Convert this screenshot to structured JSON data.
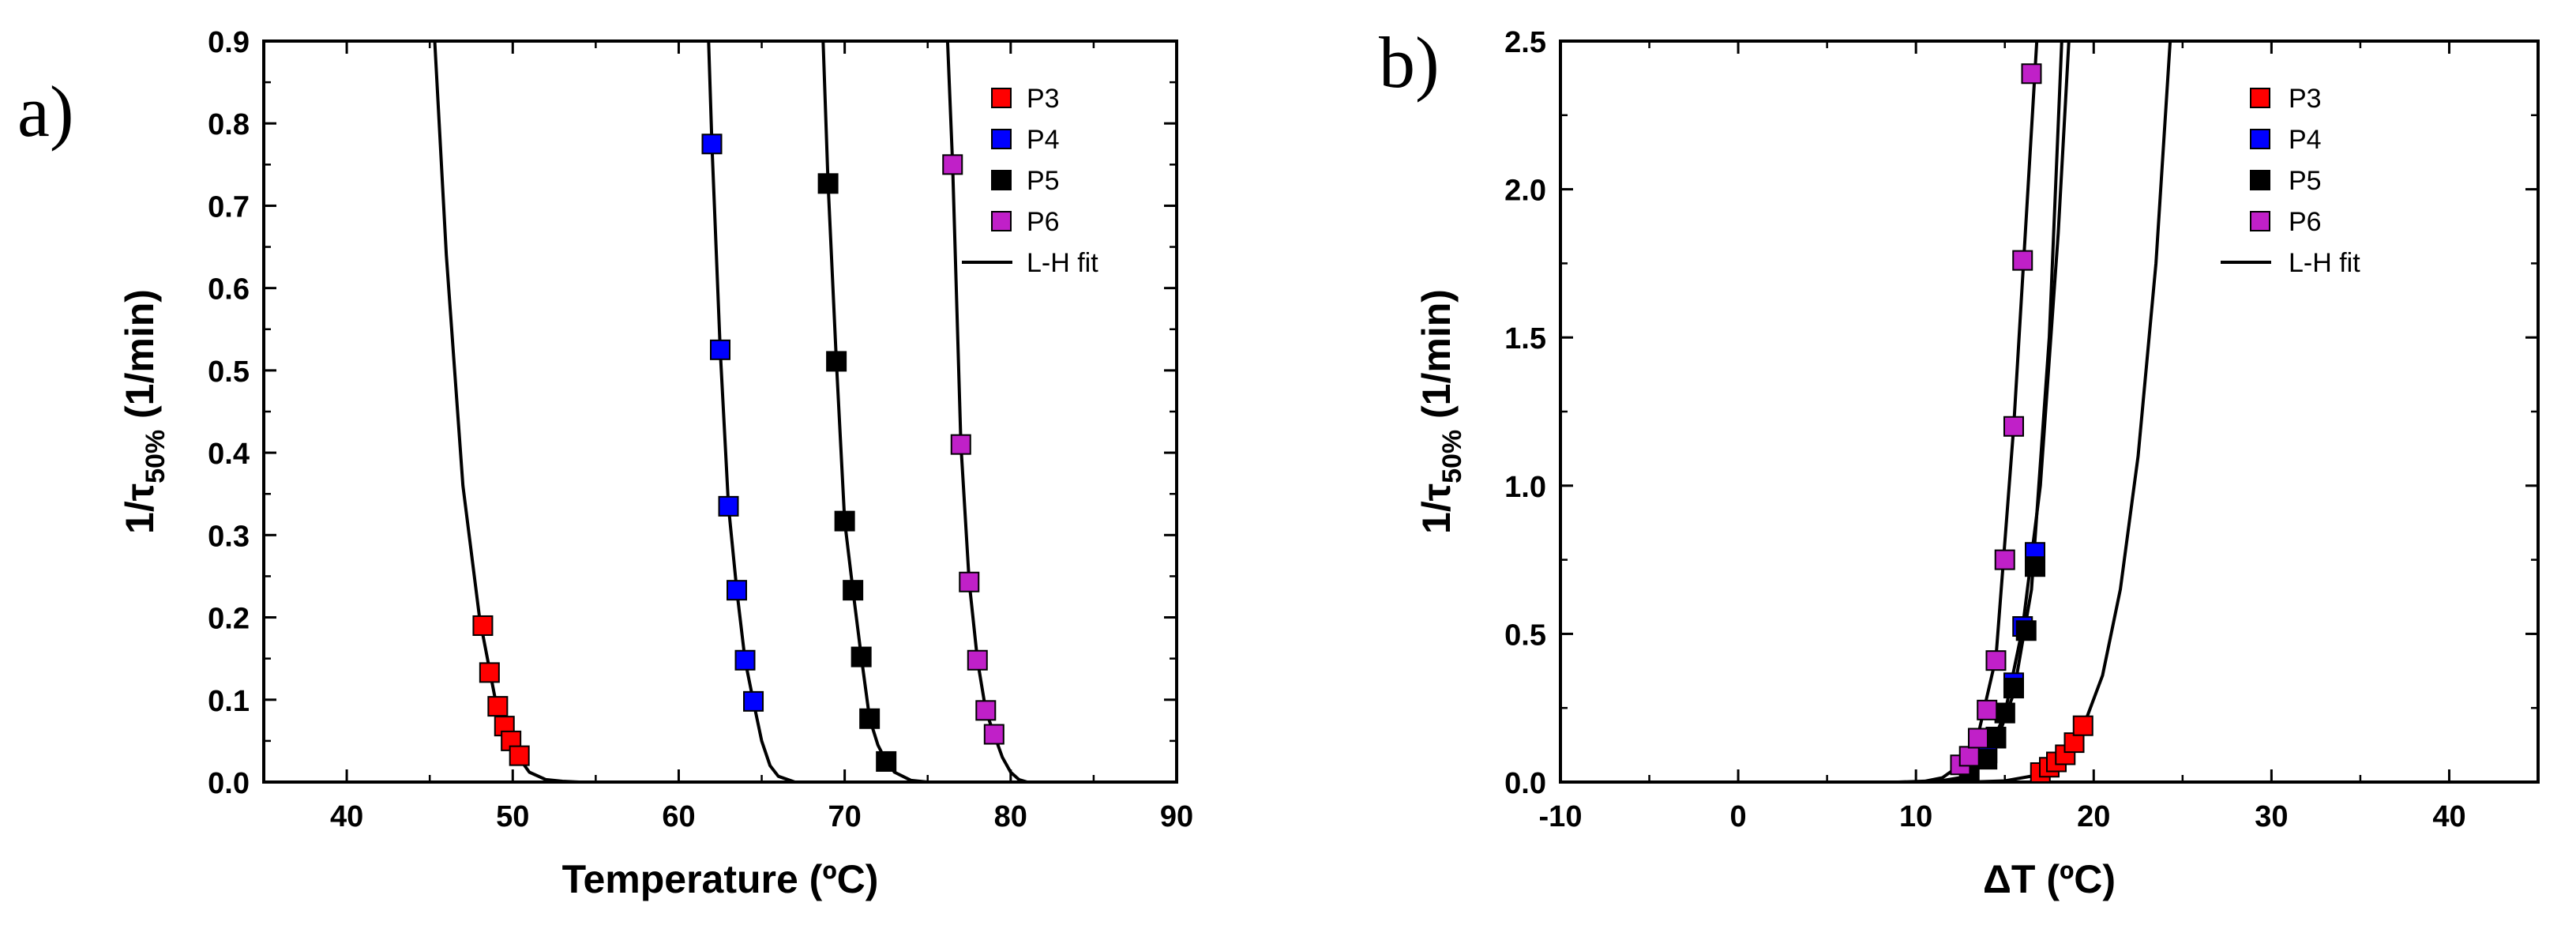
{
  "chart_data": [
    {
      "panel_label": "a)",
      "type": "scatter",
      "xlabel": "Temperature (ºC)",
      "ylabel": {
        "prefix": "1/τ",
        "subscript": "50%",
        "suffix": " (1/min)"
      },
      "xlim": [
        35,
        90
      ],
      "ylim": [
        0,
        0.9
      ],
      "xticks": [
        40,
        50,
        60,
        70,
        80,
        90
      ],
      "yticks": [
        0.0,
        0.1,
        0.2,
        0.3,
        0.4,
        0.5,
        0.6,
        0.7,
        0.8,
        0.9
      ],
      "legend": {
        "position": "top-right",
        "entries": [
          "P3",
          "P4",
          "P5",
          "P6",
          "L-H fit"
        ]
      },
      "series": [
        {
          "name": "P3",
          "color": "#ff0000",
          "points": [
            [
              48.2,
              0.19
            ],
            [
              48.6,
              0.133
            ],
            [
              49.1,
              0.092
            ],
            [
              49.5,
              0.068
            ],
            [
              49.9,
              0.05
            ],
            [
              50.4,
              0.032
            ]
          ]
        },
        {
          "name": "P4",
          "color": "#0000ff",
          "points": [
            [
              62.0,
              0.775
            ],
            [
              62.5,
              0.525
            ],
            [
              63.0,
              0.335
            ],
            [
              63.5,
              0.233
            ],
            [
              64.0,
              0.148
            ],
            [
              64.5,
              0.098
            ]
          ]
        },
        {
          "name": "P5",
          "color": "#000000",
          "points": [
            [
              69.0,
              0.727
            ],
            [
              69.5,
              0.511
            ],
            [
              70.0,
              0.317
            ],
            [
              70.5,
              0.233
            ],
            [
              71.0,
              0.152
            ],
            [
              71.5,
              0.077
            ],
            [
              72.5,
              0.025
            ]
          ]
        },
        {
          "name": "P6",
          "color": "#c020c8",
          "points": [
            [
              76.5,
              0.75
            ],
            [
              77.0,
              0.41
            ],
            [
              77.5,
              0.243
            ],
            [
              78.0,
              0.148
            ],
            [
              78.5,
              0.087
            ],
            [
              79.0,
              0.058
            ]
          ]
        }
      ],
      "fit_curves": [
        {
          "name": "L-H fit (P3)",
          "points": [
            [
              45.3,
              0.9
            ],
            [
              46.0,
              0.64
            ],
            [
              47.0,
              0.36
            ],
            [
              48.0,
              0.2
            ],
            [
              49.0,
              0.095
            ],
            [
              50.0,
              0.04
            ],
            [
              51.0,
              0.012
            ],
            [
              52.0,
              0.003
            ],
            [
              53.0,
              0.001
            ],
            [
              54.0,
              0.0
            ],
            [
              56.0,
              0.0
            ]
          ]
        },
        {
          "name": "L-H fit (P4)",
          "points": [
            [
              61.8,
              0.9
            ],
            [
              62.0,
              0.775
            ],
            [
              62.5,
              0.525
            ],
            [
              63.0,
              0.335
            ],
            [
              63.5,
              0.233
            ],
            [
              64.0,
              0.148
            ],
            [
              64.5,
              0.098
            ],
            [
              65.0,
              0.05
            ],
            [
              65.5,
              0.02
            ],
            [
              66.0,
              0.007
            ],
            [
              67.0,
              0.0
            ],
            [
              68.0,
              0.0
            ]
          ]
        },
        {
          "name": "L-H fit (P5)",
          "points": [
            [
              68.7,
              0.9
            ],
            [
              69.0,
              0.727
            ],
            [
              69.5,
              0.511
            ],
            [
              70.0,
              0.317
            ],
            [
              70.5,
              0.233
            ],
            [
              71.0,
              0.152
            ],
            [
              71.5,
              0.077
            ],
            [
              72.0,
              0.045
            ],
            [
              72.5,
              0.025
            ],
            [
              73.0,
              0.012
            ],
            [
              74.0,
              0.002
            ],
            [
              75.0,
              0.0
            ],
            [
              76.0,
              0.0
            ]
          ]
        },
        {
          "name": "L-H fit (P6)",
          "points": [
            [
              76.2,
              0.9
            ],
            [
              76.5,
              0.75
            ],
            [
              77.0,
              0.41
            ],
            [
              77.5,
              0.243
            ],
            [
              78.0,
              0.148
            ],
            [
              78.5,
              0.087
            ],
            [
              79.0,
              0.058
            ],
            [
              79.5,
              0.03
            ],
            [
              80.0,
              0.012
            ],
            [
              80.5,
              0.003
            ],
            [
              81.0,
              0.0
            ],
            [
              83.0,
              0.0
            ]
          ]
        }
      ]
    },
    {
      "panel_label": "b)",
      "type": "scatter",
      "xlabel": "ΔT (ºC)",
      "ylabel": {
        "prefix": "1/τ",
        "subscript": "50%",
        "suffix": " (1/min)"
      },
      "xlim": [
        -10,
        45
      ],
      "ylim": [
        0,
        2.5
      ],
      "xticks": [
        -10,
        0,
        10,
        20,
        30,
        40
      ],
      "yticks": [
        0.0,
        0.5,
        1.0,
        1.5,
        2.0,
        2.5
      ],
      "legend": {
        "position": "top-right",
        "entries": [
          "P3",
          "P4",
          "P5",
          "P6",
          "L-H fit"
        ]
      },
      "series": [
        {
          "name": "P3",
          "color": "#ff0000",
          "points": [
            [
              17.0,
              0.032
            ],
            [
              17.5,
              0.05
            ],
            [
              17.9,
              0.068
            ],
            [
              18.4,
              0.092
            ],
            [
              18.9,
              0.133
            ],
            [
              19.4,
              0.19
            ]
          ]
        },
        {
          "name": "P4",
          "color": "#0000ff",
          "points": [
            [
              14.0,
              0.098
            ],
            [
              14.5,
              0.148
            ],
            [
              15.0,
              0.233
            ],
            [
              15.5,
              0.335
            ],
            [
              16.0,
              0.525
            ],
            [
              16.7,
              0.775
            ]
          ]
        },
        {
          "name": "P5",
          "color": "#000000",
          "points": [
            [
              13.0,
              0.025
            ],
            [
              14.0,
              0.077
            ],
            [
              14.5,
              0.152
            ],
            [
              15.0,
              0.233
            ],
            [
              15.5,
              0.317
            ],
            [
              16.2,
              0.511
            ],
            [
              16.7,
              0.727
            ]
          ]
        },
        {
          "name": "P6",
          "color": "#c020c8",
          "points": [
            [
              12.5,
              0.058
            ],
            [
              13.0,
              0.087
            ],
            [
              13.5,
              0.148
            ],
            [
              14.0,
              0.243
            ],
            [
              14.5,
              0.41
            ],
            [
              15.0,
              0.75
            ],
            [
              15.5,
              1.2
            ],
            [
              16.0,
              1.76
            ],
            [
              16.5,
              2.39
            ]
          ]
        }
      ],
      "fit_curves": [
        {
          "name": "L-H fit (P6)",
          "points": [
            [
              9.0,
              0.0
            ],
            [
              10.5,
              0.003
            ],
            [
              11.5,
              0.015
            ],
            [
              12.5,
              0.058
            ],
            [
              13.5,
              0.16
            ],
            [
              14.5,
              0.42
            ],
            [
              15.5,
              1.2
            ],
            [
              16.3,
              2.0
            ],
            [
              16.8,
              2.5
            ]
          ]
        },
        {
          "name": "L-H fit (P5)",
          "points": [
            [
              10.0,
              0.0
            ],
            [
              11.5,
              0.005
            ],
            [
              12.5,
              0.015
            ],
            [
              13.5,
              0.05
            ],
            [
              14.5,
              0.13
            ],
            [
              15.5,
              0.3
            ],
            [
              16.5,
              0.65
            ],
            [
              17.5,
              1.5
            ],
            [
              18.2,
              2.5
            ]
          ]
        },
        {
          "name": "L-H fit (P4)",
          "points": [
            [
              10.5,
              0.0
            ],
            [
              12.0,
              0.004
            ],
            [
              13.0,
              0.02
            ],
            [
              14.0,
              0.09
            ],
            [
              15.0,
              0.23
            ],
            [
              16.0,
              0.52
            ],
            [
              17.0,
              1.0
            ],
            [
              18.0,
              1.85
            ],
            [
              18.6,
              2.5
            ]
          ]
        },
        {
          "name": "L-H fit (P3)",
          "points": [
            [
              13.0,
              0.0
            ],
            [
              15.0,
              0.004
            ],
            [
              16.5,
              0.02
            ],
            [
              17.5,
              0.05
            ],
            [
              18.5,
              0.1
            ],
            [
              19.5,
              0.2
            ],
            [
              20.5,
              0.36
            ],
            [
              21.5,
              0.65
            ],
            [
              22.5,
              1.1
            ],
            [
              23.5,
              1.75
            ],
            [
              24.3,
              2.5
            ]
          ]
        }
      ]
    }
  ]
}
